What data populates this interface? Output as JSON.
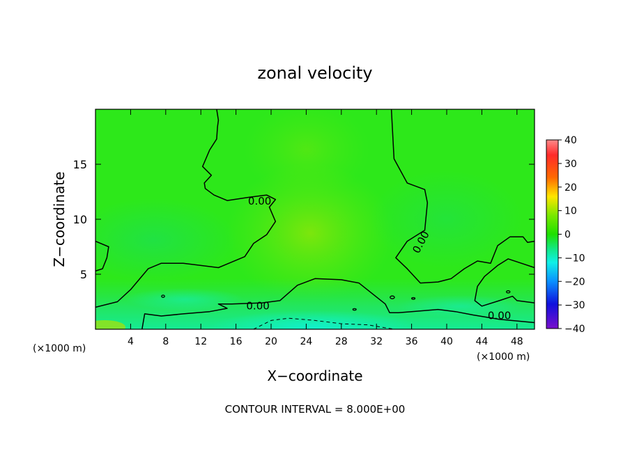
{
  "chart_data": {
    "type": "heatmap",
    "title": "zonal velocity",
    "xlabel": "X−coordinate",
    "ylabel": "Z−coordinate",
    "x_unit_left": "(×1000 m)",
    "x_unit_right": "(×1000 m)",
    "xlim": [
      0,
      50
    ],
    "ylim": [
      0,
      20
    ],
    "x_ticks": [
      4,
      8,
      12,
      16,
      20,
      24,
      28,
      32,
      36,
      40,
      44,
      48
    ],
    "y_ticks": [
      5,
      10,
      15
    ],
    "colorbar": {
      "min": -40,
      "max": 40,
      "ticks": [
        40,
        30,
        20,
        10,
        0,
        -10,
        -20,
        -30,
        -40
      ],
      "tick_labels": [
        "40",
        "30",
        "20",
        "10",
        "0",
        "−10",
        "−20",
        "−30",
        "−40"
      ]
    },
    "contour_interval_text": "CONTOUR INTERVAL = 8.000E+00",
    "contour_labels": [
      "0.00",
      "0.00",
      "0.00",
      "0.00"
    ],
    "zero_contours": [
      [
        [
          0,
          8.0
        ],
        [
          1.5,
          7.5
        ],
        [
          1.3,
          6.5
        ],
        [
          0.8,
          5.5
        ],
        [
          0,
          5.3
        ]
      ],
      [
        [
          0,
          2.0
        ],
        [
          2.5,
          2.5
        ],
        [
          4,
          3.6
        ],
        [
          6,
          5.5
        ],
        [
          7.5,
          6.0
        ],
        [
          10,
          6.0
        ],
        [
          14,
          5.6
        ],
        [
          17,
          6.6
        ],
        [
          18,
          7.8
        ],
        [
          19.5,
          8.6
        ],
        [
          20.5,
          9.8
        ],
        [
          19.8,
          11.1
        ],
        [
          20.5,
          11.8
        ],
        [
          19.5,
          12.2
        ],
        [
          17.5,
          12.0
        ],
        [
          15,
          11.7
        ],
        [
          13.5,
          12.2
        ],
        [
          12.5,
          12.8
        ],
        [
          12.4,
          13.3
        ],
        [
          13.2,
          14.0
        ],
        [
          12.2,
          14.8
        ],
        [
          13.0,
          16.3
        ],
        [
          13.8,
          17.3
        ],
        [
          13.9,
          18.4
        ],
        [
          14.0,
          19.0
        ],
        [
          13.8,
          20.0
        ]
      ],
      [
        [
          5.3,
          0
        ],
        [
          5.6,
          1.4
        ],
        [
          7.5,
          1.2
        ],
        [
          10,
          1.4
        ],
        [
          13,
          1.6
        ],
        [
          15,
          1.9
        ],
        [
          14,
          2.3
        ],
        [
          15.5,
          2.3
        ],
        [
          19,
          2.4
        ],
        [
          21,
          2.6
        ],
        [
          23,
          4.0
        ],
        [
          25,
          4.6
        ],
        [
          28,
          4.5
        ],
        [
          30,
          4.2
        ],
        [
          33,
          2.3
        ],
        [
          33.5,
          1.5
        ],
        [
          34.5,
          1.5
        ],
        [
          36,
          1.6
        ],
        [
          39,
          1.8
        ],
        [
          41,
          1.6
        ],
        [
          43,
          1.3
        ],
        [
          46,
          0.9
        ],
        [
          50,
          0.6
        ]
      ],
      [
        [
          33.7,
          20.0
        ],
        [
          34.0,
          15.5
        ],
        [
          35.5,
          13.3
        ],
        [
          37.5,
          12.7
        ],
        [
          37.8,
          11.5
        ],
        [
          37.5,
          9.0
        ],
        [
          35.5,
          8.0
        ],
        [
          34.2,
          6.5
        ],
        [
          35.5,
          5.5
        ],
        [
          37.0,
          4.2
        ],
        [
          39.0,
          4.3
        ],
        [
          40.5,
          4.6
        ],
        [
          42.0,
          5.5
        ],
        [
          43.5,
          6.2
        ],
        [
          45.0,
          6.0
        ],
        [
          45.8,
          7.6
        ],
        [
          47.2,
          8.4
        ],
        [
          48.7,
          8.4
        ],
        [
          49.2,
          7.9
        ],
        [
          50,
          8.0
        ]
      ],
      [
        [
          50,
          5.6
        ],
        [
          47.0,
          6.4
        ],
        [
          45.8,
          5.8
        ],
        [
          44.3,
          4.8
        ],
        [
          43.5,
          3.9
        ],
        [
          43.2,
          2.6
        ],
        [
          44.0,
          2.1
        ],
        [
          46.0,
          2.6
        ],
        [
          47.5,
          3.0
        ],
        [
          48.0,
          2.6
        ],
        [
          50,
          2.4
        ]
      ]
    ],
    "negative_contour": [
      [
        18,
        0
      ],
      [
        20,
        0.8
      ],
      [
        22,
        1.0
      ],
      [
        25,
        0.8
      ],
      [
        28,
        0.5
      ],
      [
        31,
        0.4
      ],
      [
        34,
        0
      ]
    ]
  }
}
